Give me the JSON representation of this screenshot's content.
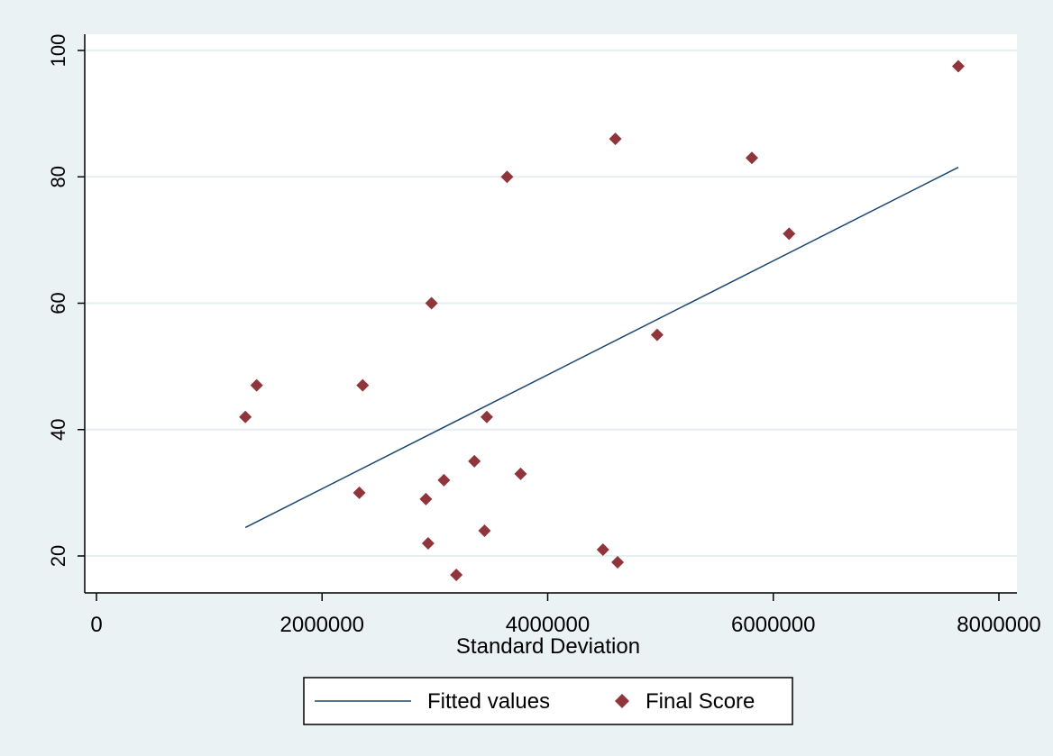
{
  "chart_data": {
    "type": "scatter",
    "title": "",
    "xlabel": "Standard Deviation",
    "ylabel": "",
    "xlim": [
      0,
      8000000
    ],
    "ylim": [
      15,
      100
    ],
    "xticks": [
      0,
      2000000,
      4000000,
      6000000,
      8000000
    ],
    "xtick_labels": [
      "0",
      "2000000",
      "4000000",
      "6000000",
      "8000000"
    ],
    "yticks": [
      20,
      40,
      60,
      80,
      100
    ],
    "ytick_labels": [
      "20",
      "40",
      "60",
      "80",
      "100"
    ],
    "grid": "horizontal",
    "legend": {
      "position": "bottom"
    },
    "series": [
      {
        "name": "Fitted values",
        "kind": "line",
        "color": "#1a476f",
        "points": [
          [
            1320000,
            24.5
          ],
          [
            7640000,
            81.5
          ]
        ]
      },
      {
        "name": "Final Score",
        "kind": "scatter",
        "marker": "diamond",
        "color": "#90353b",
        "points": [
          [
            1320000,
            42
          ],
          [
            1420000,
            47
          ],
          [
            2330000,
            30
          ],
          [
            2360000,
            47
          ],
          [
            2920000,
            29
          ],
          [
            2940000,
            22
          ],
          [
            2970000,
            60
          ],
          [
            3080000,
            32
          ],
          [
            3190000,
            17
          ],
          [
            3350000,
            35
          ],
          [
            3440000,
            24
          ],
          [
            3460000,
            42
          ],
          [
            3640000,
            80
          ],
          [
            3760000,
            33
          ],
          [
            4490000,
            21
          ],
          [
            4600000,
            86
          ],
          [
            4620000,
            19
          ],
          [
            4970000,
            55
          ],
          [
            5810000,
            83
          ],
          [
            6140000,
            71
          ],
          [
            7640000,
            97.5
          ]
        ]
      }
    ]
  }
}
